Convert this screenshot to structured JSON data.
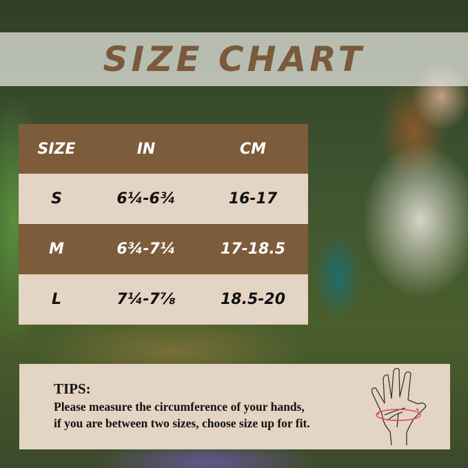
{
  "title": "SIZE CHART",
  "table": {
    "headers": [
      "SIZE",
      "IN",
      "CM"
    ],
    "rows": [
      {
        "size": "S",
        "in": "6¼-6¾",
        "cm": "16-17"
      },
      {
        "size": "M",
        "in": "6¾-7¼",
        "cm": "17-18.5"
      },
      {
        "size": "L",
        "in": "7¼-7⅞",
        "cm": "18.5-20"
      }
    ]
  },
  "tips": {
    "title": "TIPS:",
    "line1": "Please measure the circumference of your hands,",
    "line2": "if you are between two sizes, choose size up for fit.",
    "icon": "hand-measure-icon"
  },
  "colors": {
    "brown": "#7c5c3b",
    "beige": "#e4d4c3",
    "measure_line": "#e04a4a"
  }
}
